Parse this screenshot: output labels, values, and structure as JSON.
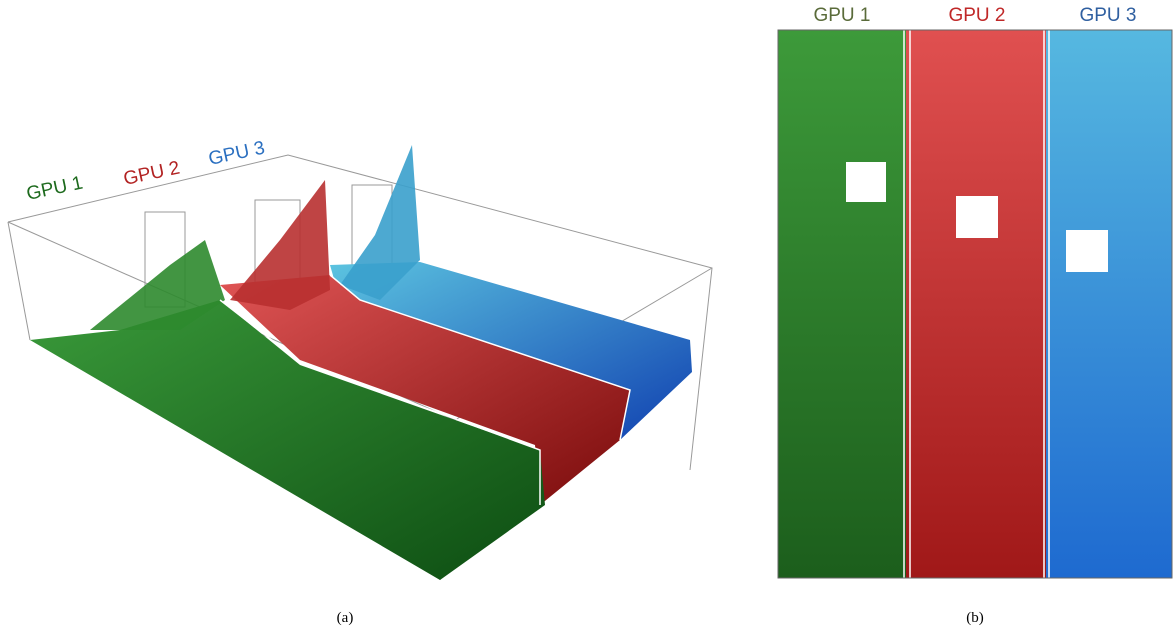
{
  "panel_a": {
    "labels": [
      "GPU 1",
      "GPU 2",
      "GPU 3"
    ],
    "caption": "(a)"
  },
  "panel_b": {
    "labels": [
      "GPU 1",
      "GPU 2",
      "GPU 3"
    ],
    "caption": "(b)"
  }
}
